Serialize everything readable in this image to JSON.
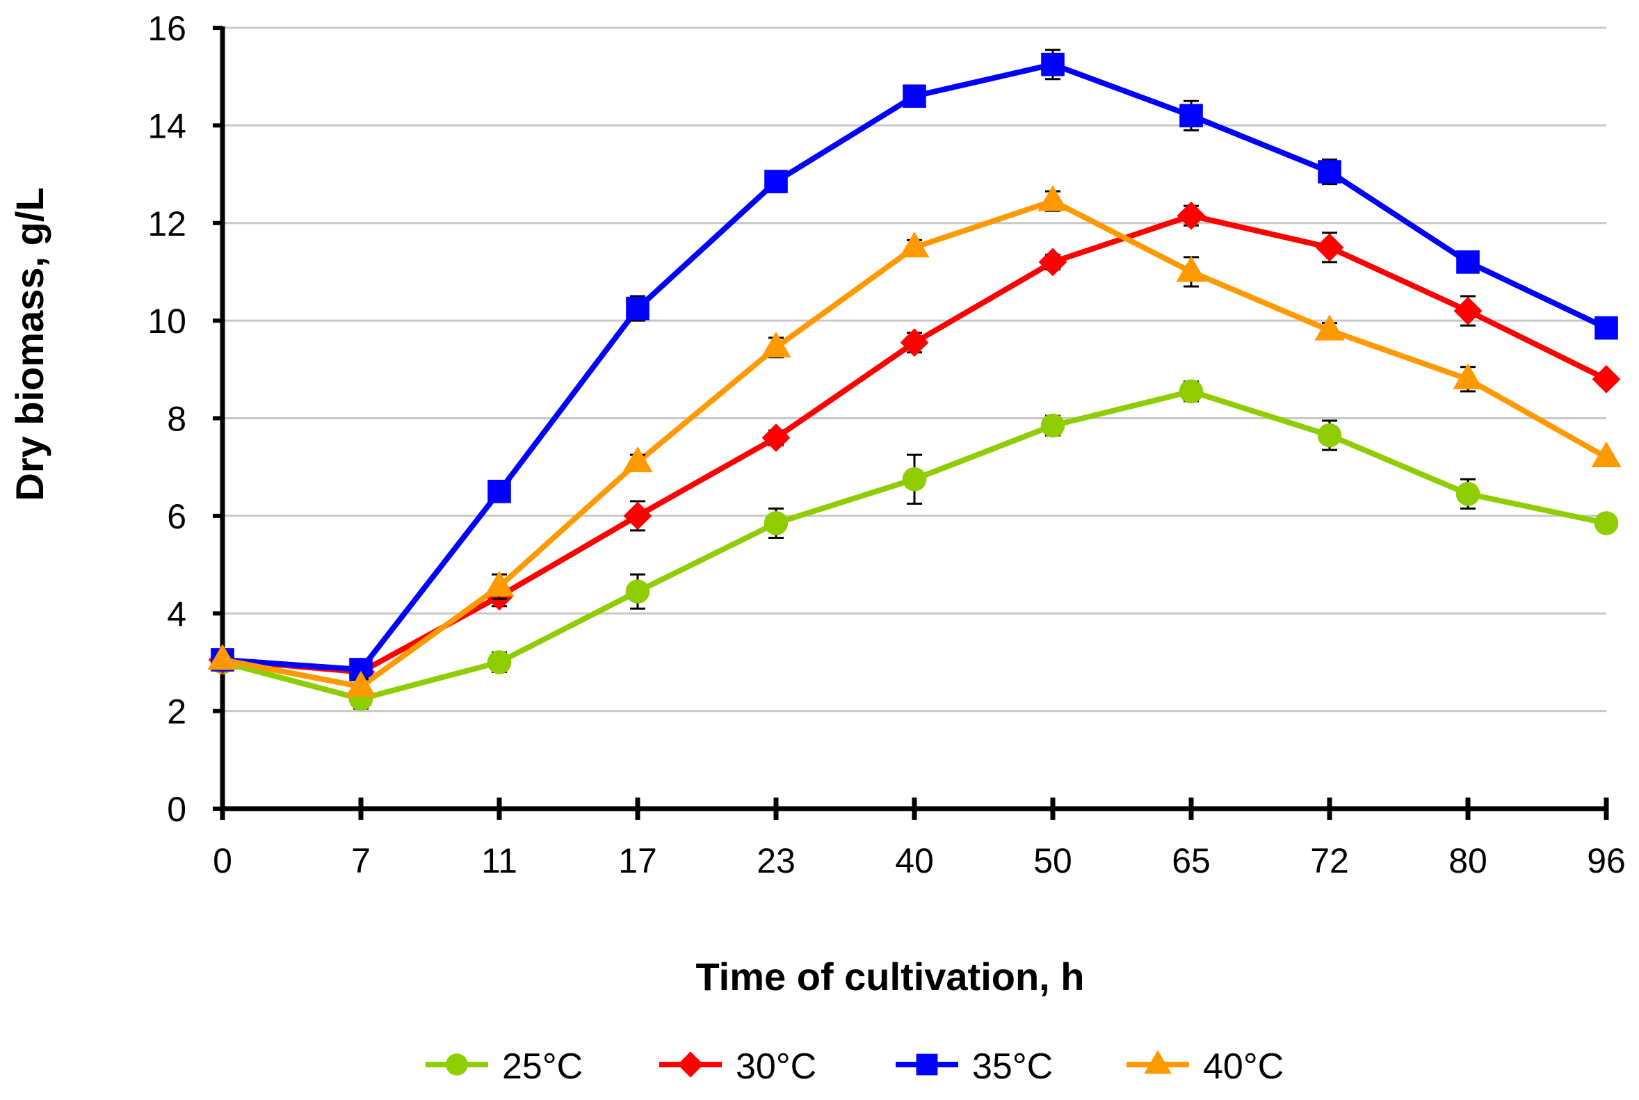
{
  "chart_data": {
    "type": "line",
    "xlabel": "Time of cultivation, h",
    "ylabel": "Dry biomass, g/L",
    "categories": [
      "0",
      "7",
      "11",
      "17",
      "23",
      "40",
      "50",
      "65",
      "72",
      "80",
      "96"
    ],
    "ylim": [
      0,
      16
    ],
    "yticks": [
      0,
      2,
      4,
      6,
      8,
      10,
      12,
      14,
      16
    ],
    "grid": "horizontal",
    "legend_position": "bottom",
    "series": [
      {
        "name": "25°C",
        "color": "#8FCC00",
        "marker": "circle",
        "values": [
          3.0,
          2.25,
          3.0,
          4.45,
          5.85,
          6.75,
          7.85,
          8.55,
          7.65,
          6.45,
          5.85
        ],
        "errors": [
          0.1,
          0.2,
          0.2,
          0.35,
          0.3,
          0.5,
          0.2,
          0.2,
          0.3,
          0.3,
          0.05
        ]
      },
      {
        "name": "30°C",
        "color": "#FF0000",
        "marker": "diamond",
        "values": [
          3.05,
          2.8,
          4.35,
          6.0,
          7.6,
          9.55,
          11.2,
          12.15,
          11.5,
          10.2,
          8.8
        ],
        "errors": [
          0.1,
          0.15,
          0.2,
          0.3,
          0.15,
          0.2,
          0.15,
          0.2,
          0.3,
          0.3,
          0.05
        ]
      },
      {
        "name": "35°C",
        "color": "#0000FF",
        "marker": "square",
        "values": [
          3.05,
          2.85,
          6.5,
          10.25,
          12.85,
          14.6,
          15.25,
          14.2,
          13.05,
          11.2,
          9.85
        ],
        "errors": [
          0.1,
          0.1,
          0.2,
          0.25,
          0.2,
          0.2,
          0.3,
          0.3,
          0.25,
          0.15,
          0.05
        ]
      },
      {
        "name": "40°C",
        "color": "#FF9900",
        "marker": "triangle",
        "values": [
          3.05,
          2.5,
          4.55,
          7.1,
          9.45,
          11.5,
          12.45,
          11.0,
          9.8,
          8.8,
          7.2
        ],
        "errors": [
          0.1,
          0.15,
          0.25,
          0.15,
          0.2,
          0.15,
          0.2,
          0.3,
          0.15,
          0.25,
          0.05
        ]
      }
    ]
  }
}
